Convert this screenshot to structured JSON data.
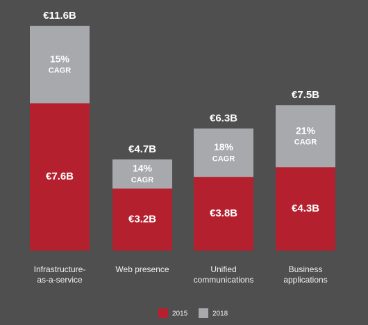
{
  "chart_data": {
    "type": "bar",
    "mode": "overlap",
    "categories": [
      "Infrastructure-\nas-a-service",
      "Web presence",
      "Unified\ncommunications",
      "Business\napplications"
    ],
    "series": [
      {
        "name": "2018",
        "color": "#a7a9ac",
        "values": [
          11.6,
          4.7,
          6.3,
          7.5
        ],
        "value_labels": [
          "€11.6B",
          "€4.7B",
          "€6.3B",
          "€7.5B"
        ]
      },
      {
        "name": "2015",
        "color": "#b5202e",
        "values": [
          7.6,
          3.2,
          3.8,
          4.3
        ],
        "value_labels": [
          "€7.6B",
          "€3.2B",
          "€3.8B",
          "€4.3B"
        ]
      }
    ],
    "growth_labels": [
      "15%",
      "14%",
      "18%",
      "21%"
    ],
    "growth_caption": "CAGR",
    "ylim": [
      0,
      12.5
    ],
    "legend_order": [
      1,
      0
    ]
  }
}
